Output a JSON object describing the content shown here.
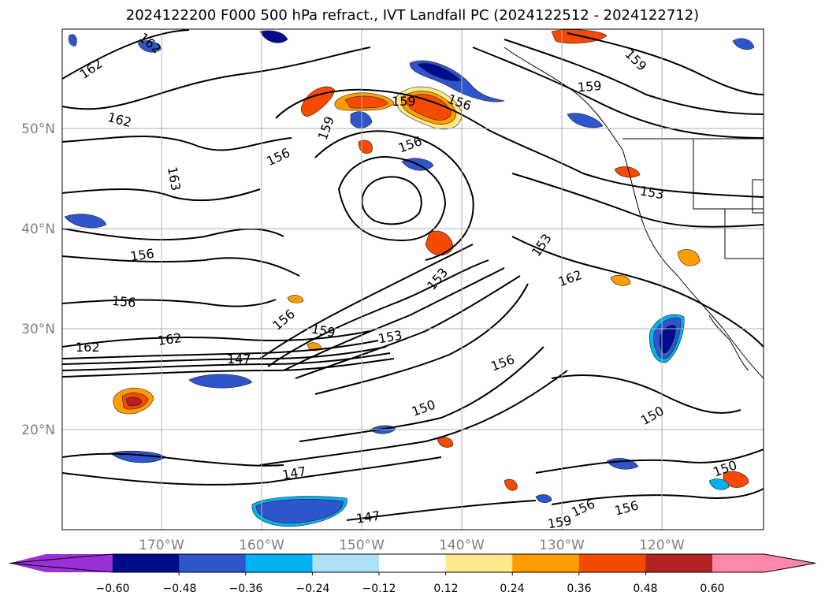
{
  "title": "2024122200 F000 500 hPa refract., IVT Landfall PC (2024122512 - 2024122712)",
  "latitude_labels": [
    "50°N",
    "40°N",
    "30°N",
    "20°N"
  ],
  "longitude_labels": [
    "170°W",
    "160°W",
    "150°W",
    "140°W",
    "130°W",
    "120°W"
  ],
  "contour_labels": [
    "162",
    "162",
    "162",
    "162",
    "163",
    "156",
    "156",
    "156",
    "156",
    "156",
    "159",
    "159",
    "159",
    "159",
    "153",
    "153",
    "153",
    "153",
    "159",
    "162",
    "162",
    "147",
    "147",
    "147",
    "150",
    "150",
    "150",
    "156",
    "156",
    "156",
    "156",
    "159"
  ],
  "colorbar": {
    "tick_labels": [
      "−0.60",
      "−0.48",
      "−0.36",
      "−0.24",
      "−0.12",
      "0.12",
      "0.24",
      "0.36",
      "0.48",
      "0.60"
    ],
    "colors": [
      "#9b30d9",
      "#000c8c",
      "#2f55cc",
      "#00b2f0",
      "#aee1f8",
      "#ffffff",
      "#fde98a",
      "#ff9d00",
      "#f54a00",
      "#b22222",
      "#ff88aa"
    ]
  }
}
